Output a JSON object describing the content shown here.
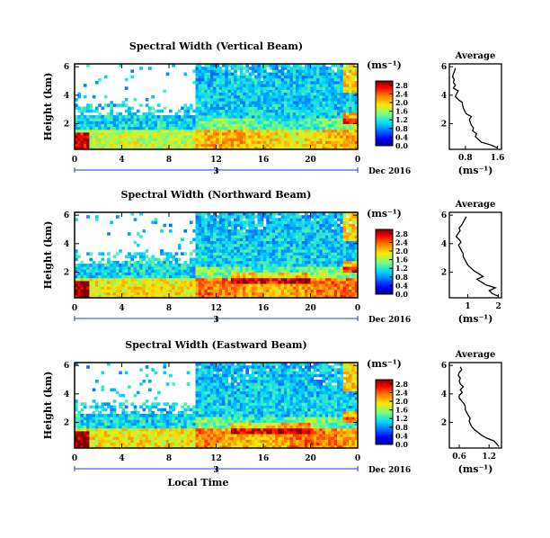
{
  "chart_data": [
    {
      "type": "heatmap",
      "title": "Spectral Width (Vertical Beam)",
      "ylabel": "Height (km)",
      "yticks": [
        "2",
        "4",
        "6"
      ],
      "ylim": [
        0.2,
        6.2
      ],
      "xticks": [
        "0",
        "4",
        "8",
        "12",
        "16",
        "20",
        "0"
      ],
      "xlim": [
        0,
        24
      ],
      "date_tick": "3",
      "date_label": "Dec 2016",
      "colorbar": {
        "unit": "(ms⁻¹)",
        "ticks": [
          "0.0",
          "0.4",
          "0.8",
          "1.2",
          "1.6",
          "2.0",
          "2.4",
          "2.8"
        ],
        "range": [
          0,
          3.0
        ]
      },
      "profile": {
        "title": "Average",
        "xlabel": "(ms⁻¹)",
        "xticks": [
          "0.8",
          "1.6"
        ],
        "xtick_values": [
          0.8,
          1.6
        ],
        "xlim": [
          0.4,
          1.7
        ],
        "yticks": [
          "2",
          "4",
          "6"
        ],
        "ylim": [
          0.2,
          6.2
        ],
        "height": [
          0.3,
          0.5,
          0.7,
          0.9,
          1.1,
          1.3,
          1.5,
          1.7,
          1.9,
          2.1,
          2.3,
          2.5,
          2.7,
          2.9,
          3.1,
          3.3,
          3.5,
          3.7,
          3.9,
          4.1,
          4.3,
          4.5,
          4.7,
          4.9,
          5.1,
          5.3,
          5.5,
          5.7,
          5.9
        ],
        "width": [
          1.6,
          1.45,
          1.2,
          1.12,
          1.05,
          1.08,
          0.98,
          1.0,
          0.95,
          0.92,
          0.9,
          0.95,
          0.82,
          0.78,
          0.75,
          0.73,
          0.72,
          0.62,
          0.55,
          0.58,
          0.62,
          0.5,
          0.55,
          0.5,
          0.52,
          0.48,
          0.5,
          0.53,
          0.55
        ]
      }
    },
    {
      "type": "heatmap",
      "title": "Spectral Width (Northward Beam)",
      "ylabel": "Height (km)",
      "yticks": [
        "2",
        "4",
        "6"
      ],
      "ylim": [
        0.2,
        6.2
      ],
      "xticks": [
        "0",
        "4",
        "8",
        "12",
        "16",
        "20",
        "0"
      ],
      "xlim": [
        0,
        24
      ],
      "date_tick": "3",
      "date_label": "Dec 2016",
      "colorbar": {
        "unit": "(ms⁻¹)",
        "ticks": [
          "0.0",
          "0.4",
          "0.8",
          "1.2",
          "1.6",
          "2.0",
          "2.4",
          "2.8"
        ],
        "range": [
          0,
          3.0
        ]
      },
      "profile": {
        "title": "Average",
        "xlabel": "(ms⁻¹)",
        "xticks": [
          "1",
          "2"
        ],
        "xtick_values": [
          1,
          2
        ],
        "xlim": [
          0.4,
          2.1
        ],
        "yticks": [
          "2",
          "4",
          "6"
        ],
        "ylim": [
          0.2,
          6.2
        ],
        "height": [
          0.3,
          0.5,
          0.7,
          0.9,
          1.1,
          1.3,
          1.5,
          1.7,
          1.9,
          2.1,
          2.3,
          2.5,
          2.7,
          2.9,
          3.1,
          3.3,
          3.5,
          3.7,
          3.9,
          4.1,
          4.3,
          4.5,
          4.7,
          4.9,
          5.1,
          5.3,
          5.5,
          5.7,
          5.9
        ],
        "width": [
          2.0,
          1.8,
          1.7,
          1.9,
          1.6,
          1.45,
          1.3,
          1.5,
          1.35,
          1.2,
          1.1,
          1.0,
          0.95,
          0.9,
          0.85,
          0.85,
          0.8,
          0.75,
          0.7,
          0.78,
          0.72,
          0.62,
          0.68,
          0.75,
          0.72,
          0.8,
          0.85,
          0.9,
          0.95
        ]
      }
    },
    {
      "type": "heatmap",
      "title": "Spectral Width (Eastward Beam)",
      "ylabel": "Height (km)",
      "yticks": [
        "2",
        "4",
        "6"
      ],
      "ylim": [
        0.2,
        6.2
      ],
      "xticks": [
        "0",
        "4",
        "8",
        "12",
        "16",
        "20",
        "0"
      ],
      "xlim": [
        0,
        24
      ],
      "date_tick": "3",
      "date_label": "Dec 2016",
      "xlabel": "Local Time",
      "colorbar": {
        "unit": "(ms⁻¹)",
        "ticks": [
          "0.0",
          "0.4",
          "0.8",
          "1.2",
          "1.6",
          "2.0",
          "2.4",
          "2.8"
        ],
        "range": [
          0,
          3.0
        ]
      },
      "profile": {
        "title": "Average",
        "xlabel": "(ms⁻¹)",
        "xticks": [
          "0.6",
          "1.2"
        ],
        "xtick_values": [
          0.6,
          1.2
        ],
        "xlim": [
          0.4,
          1.45
        ],
        "yticks": [
          "2",
          "4",
          "6"
        ],
        "ylim": [
          0.2,
          6.2
        ],
        "height": [
          0.3,
          0.5,
          0.7,
          0.9,
          1.1,
          1.3,
          1.5,
          1.7,
          1.9,
          2.1,
          2.3,
          2.5,
          2.7,
          2.9,
          3.1,
          3.3,
          3.5,
          3.7,
          3.9,
          4.1,
          4.3,
          4.5,
          4.7,
          4.9,
          5.1,
          5.3,
          5.5,
          5.7,
          5.9
        ],
        "width": [
          1.4,
          1.35,
          1.3,
          1.15,
          1.05,
          0.98,
          0.9,
          0.85,
          0.82,
          0.8,
          0.82,
          0.78,
          0.75,
          0.72,
          0.72,
          0.7,
          0.65,
          0.6,
          0.6,
          0.66,
          0.62,
          0.68,
          0.62,
          0.6,
          0.62,
          0.58,
          0.6,
          0.65,
          0.62
        ]
      }
    }
  ]
}
